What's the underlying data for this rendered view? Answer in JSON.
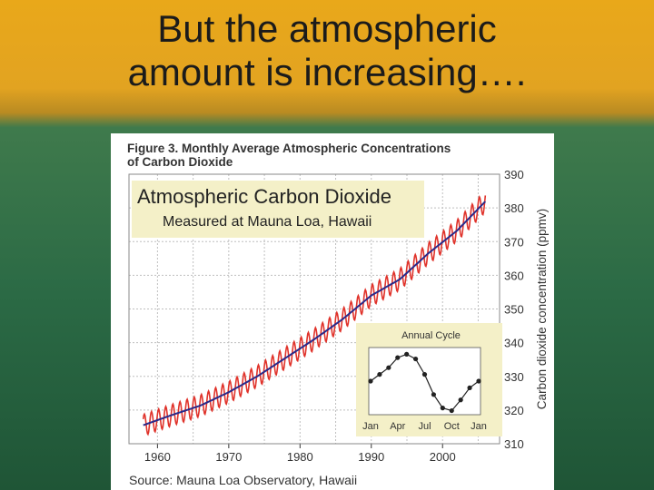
{
  "slide": {
    "title_line1": "But the atmospheric",
    "title_line2": "amount is increasing…."
  },
  "figure": {
    "caption_line1": "Figure 3. Monthly Average Atmospheric Concentrations",
    "caption_line2": "of Carbon Dioxide",
    "banner_title": "Atmospheric Carbon Dioxide",
    "banner_subtitle": "Measured at Mauna Loa, Hawaii",
    "source": "Source: Mauna Loa Observatory, Hawaii",
    "colors": {
      "seasonal_line": "#e0332b",
      "trend_line": "#2a2a8a",
      "banner_bg": "#f4f0c8",
      "grid": "#bfbfbf"
    }
  },
  "chart_data": [
    {
      "type": "line",
      "title": "Atmospheric Carbon Dioxide",
      "subtitle": "Measured at Mauna Loa, Hawaii",
      "xlabel": "",
      "ylabel": "Carbon dioxide concentration (ppmv)",
      "x_ticks": [
        "1960",
        "1970",
        "1980",
        "1990",
        "2000"
      ],
      "y_ticks": [
        "310",
        "320",
        "330",
        "340",
        "350",
        "360",
        "370",
        "380",
        "390"
      ],
      "xlim": [
        1956,
        2008
      ],
      "ylim": [
        310,
        390
      ],
      "grid": true,
      "series": [
        {
          "x": [
            1958,
            1962,
            1966,
            1970,
            1974,
            1978,
            1982,
            1986,
            1990,
            1994,
            1998,
            2002,
            2006
          ],
          "values": [
            315.5,
            318.5,
            321.3,
            325.3,
            330.0,
            335.5,
            341.0,
            347.0,
            354.0,
            358.8,
            366.5,
            373.2,
            381.9
          ]
        }
      ],
      "seasonal_amplitude": 3.2
    },
    {
      "type": "line",
      "title": "Annual Cycle",
      "x_ticks": [
        "Jan",
        "Apr",
        "Jul",
        "Oct",
        "Jan"
      ],
      "y_ticks": [],
      "series": [
        {
          "x": [
            "Jan",
            "Feb",
            "Mar",
            "Apr",
            "May",
            "Jun",
            "Jul",
            "Aug",
            "Sep",
            "Oct",
            "Nov",
            "Dec",
            "Jan"
          ],
          "values": [
            0.0,
            1.0,
            2.0,
            3.5,
            4.0,
            3.3,
            1.0,
            -2.0,
            -4.0,
            -4.4,
            -2.8,
            -1.0,
            0.0
          ]
        }
      ]
    }
  ]
}
